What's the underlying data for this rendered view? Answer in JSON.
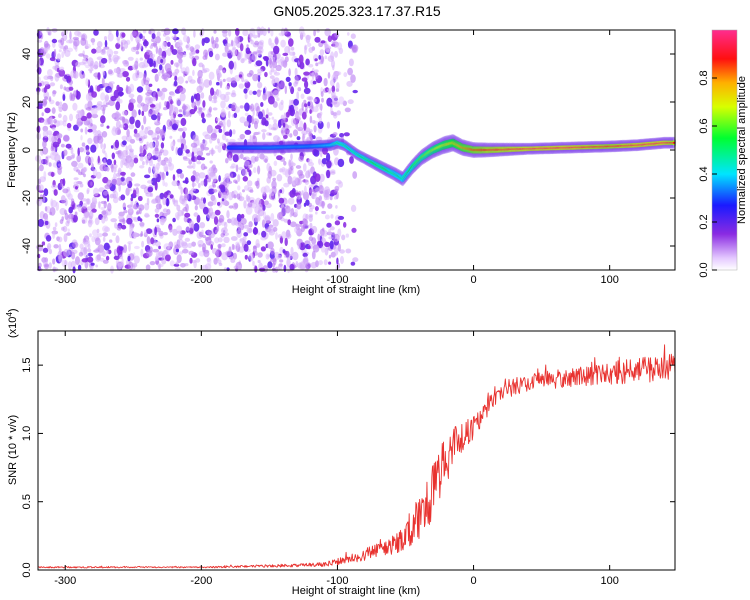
{
  "title": "GN05.2025.323.17.37.R15",
  "chart_data": [
    {
      "type": "heatmap",
      "name": "spectrogram",
      "xlabel": "Height of straight line (km)",
      "ylabel": "Frequency (Hz)",
      "xlim": [
        -320,
        148
      ],
      "ylim": [
        -50,
        50
      ],
      "xticks": [
        -300,
        -200,
        -100,
        0,
        100
      ],
      "xtick_labels": [
        "-300",
        "-200",
        "-100",
        "0",
        "100"
      ],
      "yticks": [
        -40,
        -20,
        0,
        20,
        40
      ],
      "ytick_labels": [
        "-40",
        "-20",
        "0",
        "20",
        "40"
      ],
      "noise_region_x": [
        -320,
        -100
      ],
      "signal_track": {
        "x": [
          -180,
          -150,
          -120,
          -105,
          -100,
          -95,
          -85,
          -75,
          -65,
          -58,
          -52,
          -45,
          -38,
          -30,
          -22,
          -15,
          -8,
          0,
          10,
          40,
          70,
          100,
          120,
          140,
          148
        ],
        "frequency": [
          1,
          1,
          1.5,
          2,
          3,
          2,
          -2,
          -5,
          -8,
          -10,
          -12,
          -7,
          -3,
          0,
          2,
          3,
          1,
          0,
          0,
          0.5,
          1,
          1.5,
          2,
          3,
          3
        ],
        "amplitude": [
          0.3,
          0.35,
          0.35,
          0.4,
          0.5,
          0.5,
          0.5,
          0.55,
          0.55,
          0.5,
          0.5,
          0.55,
          0.6,
          0.65,
          0.7,
          0.75,
          0.8,
          0.85,
          0.9,
          0.95,
          0.95,
          0.9,
          0.95,
          0.95,
          0.9
        ]
      },
      "colorbar": {
        "label": "Normalized spectral amplitude",
        "range": [
          0,
          1
        ],
        "ticks": [
          0.0,
          0.2,
          0.4,
          0.6,
          0.8
        ],
        "tick_labels": [
          "0.0",
          "0.2",
          "0.4",
          "0.6",
          "0.8"
        ]
      }
    },
    {
      "type": "line",
      "name": "snr",
      "xlabel": "Height of straight line (km)",
      "ylabel": "SNR (10 * v/v)",
      "multiplier_label": "(x10",
      "multiplier_exponent": "4",
      "multiplier_close": ")",
      "xlim": [
        -320,
        148
      ],
      "ylim": [
        0,
        1.75
      ],
      "xticks": [
        -300,
        -200,
        -100,
        0,
        100
      ],
      "xtick_labels": [
        "-300",
        "-200",
        "-100",
        "0",
        "100"
      ],
      "yticks": [
        0.0,
        0.5,
        1.0,
        1.5
      ],
      "ytick_labels": [
        "0.0",
        "0.5",
        "1.0",
        "1.5"
      ],
      "color": "#e8322f",
      "x": [
        -320,
        -250,
        -200,
        -150,
        -110,
        -95,
        -85,
        -75,
        -65,
        -55,
        -48,
        -40,
        -35,
        -30,
        -25,
        -20,
        -15,
        -10,
        -5,
        0,
        5,
        10,
        15,
        20,
        25,
        30,
        40,
        50,
        60,
        70,
        80,
        90,
        100,
        110,
        120,
        130,
        140,
        148
      ],
      "values": [
        0.02,
        0.02,
        0.02,
        0.03,
        0.04,
        0.07,
        0.1,
        0.13,
        0.16,
        0.2,
        0.26,
        0.38,
        0.45,
        0.58,
        0.7,
        0.82,
        0.9,
        0.95,
        1.0,
        1.05,
        1.1,
        1.18,
        1.25,
        1.3,
        1.32,
        1.34,
        1.37,
        1.39,
        1.4,
        1.41,
        1.42,
        1.43,
        1.44,
        1.45,
        1.46,
        1.47,
        1.48,
        1.49
      ],
      "noise_amplitude": [
        0.005,
        0.005,
        0.005,
        0.01,
        0.015,
        0.03,
        0.04,
        0.05,
        0.06,
        0.08,
        0.1,
        0.15,
        0.18,
        0.2,
        0.22,
        0.2,
        0.15,
        0.12,
        0.1,
        0.09,
        0.08,
        0.07,
        0.06,
        0.06,
        0.06,
        0.06,
        0.06,
        0.06,
        0.07,
        0.07,
        0.07,
        0.08,
        0.08,
        0.09,
        0.09,
        0.1,
        0.1,
        0.1
      ]
    }
  ]
}
